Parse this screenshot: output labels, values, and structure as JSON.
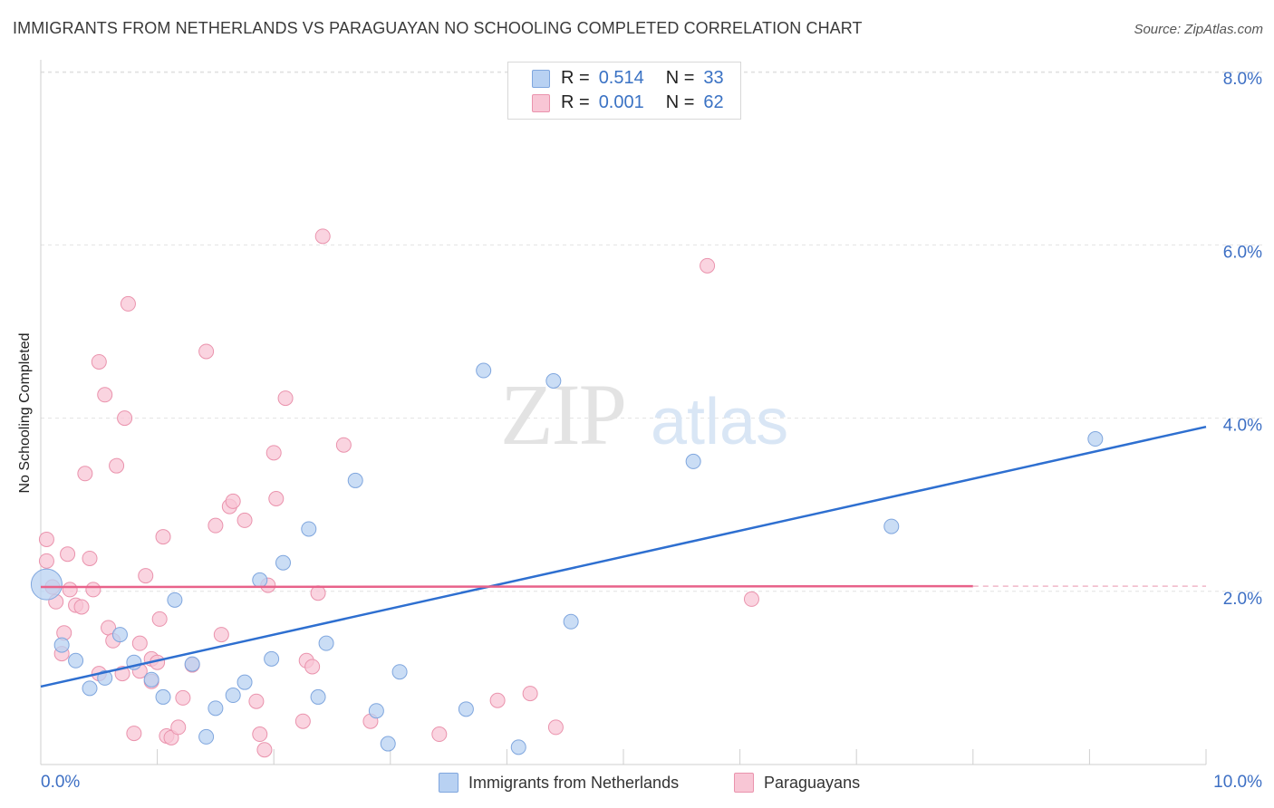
{
  "title": "IMMIGRANTS FROM NETHERLANDS VS PARAGUAYAN NO SCHOOLING COMPLETED CORRELATION CHART",
  "source": "Source: ZipAtlas.com",
  "watermark": {
    "zip": "ZIP",
    "atlas": "atlas"
  },
  "legend": {
    "r_label": "R =",
    "n_label": "N =",
    "series1": {
      "r": "0.514",
      "n": "33"
    },
    "series2": {
      "r": "0.001",
      "n": "62"
    }
  },
  "colors": {
    "blue_fill": "#b8d1f2",
    "blue_stroke": "#7fa6de",
    "blue_line": "#2e6fd0",
    "pink_fill": "#f8c6d5",
    "pink_stroke": "#ea93ad",
    "pink_line": "#e8628a",
    "axis_text": "#3d6fc4"
  },
  "chart_data": {
    "type": "scatter",
    "title": "IMMIGRANTS FROM NETHERLANDS VS PARAGUAYAN NO SCHOOLING COMPLETED CORRELATION CHART",
    "xlabel": "",
    "ylabel": "No Schooling Completed",
    "xlim": [
      0,
      10
    ],
    "ylim": [
      0,
      8.2
    ],
    "x_tick_labels": [
      "0.0%",
      "10.0%"
    ],
    "y_ticks": [
      2,
      4,
      6,
      8
    ],
    "y_tick_labels": [
      "2.0%",
      "4.0%",
      "6.0%",
      "8.0%"
    ],
    "series": [
      {
        "name": "Immigrants from Netherlands",
        "color": "#b8d1f2",
        "points": [
          [
            0.05,
            2.08
          ],
          [
            0.18,
            1.38
          ],
          [
            0.3,
            1.2
          ],
          [
            0.42,
            0.88
          ],
          [
            0.55,
            1.0
          ],
          [
            0.68,
            1.5
          ],
          [
            0.8,
            1.18
          ],
          [
            0.95,
            0.98
          ],
          [
            1.05,
            0.78
          ],
          [
            1.15,
            1.9
          ],
          [
            1.3,
            1.16
          ],
          [
            1.42,
            0.32
          ],
          [
            1.5,
            0.65
          ],
          [
            1.65,
            0.8
          ],
          [
            1.75,
            0.95
          ],
          [
            1.88,
            2.13
          ],
          [
            1.98,
            1.22
          ],
          [
            2.08,
            2.33
          ],
          [
            2.3,
            2.72
          ],
          [
            2.38,
            0.78
          ],
          [
            2.45,
            1.4
          ],
          [
            2.7,
            3.28
          ],
          [
            2.88,
            0.62
          ],
          [
            2.98,
            0.24
          ],
          [
            3.08,
            1.07
          ],
          [
            3.65,
            0.64
          ],
          [
            3.8,
            4.55
          ],
          [
            4.1,
            0.2
          ],
          [
            4.4,
            4.43
          ],
          [
            4.55,
            1.65
          ],
          [
            5.6,
            3.5
          ],
          [
            7.3,
            2.75
          ],
          [
            9.05,
            3.76
          ]
        ]
      },
      {
        "name": "Paraguayans",
        "color": "#f8c6d5",
        "points": [
          [
            0.05,
            2.6
          ],
          [
            0.05,
            2.35
          ],
          [
            0.1,
            2.05
          ],
          [
            0.13,
            1.88
          ],
          [
            0.18,
            1.28
          ],
          [
            0.2,
            1.52
          ],
          [
            0.23,
            2.43
          ],
          [
            0.25,
            2.02
          ],
          [
            0.3,
            1.84
          ],
          [
            0.35,
            1.82
          ],
          [
            0.38,
            3.36
          ],
          [
            0.42,
            2.38
          ],
          [
            0.45,
            2.02
          ],
          [
            0.5,
            1.05
          ],
          [
            0.5,
            4.65
          ],
          [
            0.55,
            4.27
          ],
          [
            0.58,
            1.58
          ],
          [
            0.62,
            1.43
          ],
          [
            0.65,
            3.45
          ],
          [
            0.7,
            1.05
          ],
          [
            0.72,
            4.0
          ],
          [
            0.75,
            5.32
          ],
          [
            0.8,
            0.36
          ],
          [
            0.85,
            1.08
          ],
          [
            0.85,
            1.4
          ],
          [
            0.9,
            2.18
          ],
          [
            0.95,
            1.22
          ],
          [
            0.95,
            0.96
          ],
          [
            1.0,
            1.18
          ],
          [
            1.02,
            1.68
          ],
          [
            1.05,
            2.63
          ],
          [
            1.08,
            0.33
          ],
          [
            1.12,
            0.31
          ],
          [
            1.18,
            0.43
          ],
          [
            1.22,
            0.77
          ],
          [
            1.3,
            1.15
          ],
          [
            1.42,
            4.77
          ],
          [
            1.5,
            2.76
          ],
          [
            1.55,
            1.5
          ],
          [
            1.62,
            2.98
          ],
          [
            1.65,
            3.04
          ],
          [
            1.75,
            2.82
          ],
          [
            1.85,
            0.73
          ],
          [
            1.88,
            0.35
          ],
          [
            1.92,
            0.17
          ],
          [
            1.95,
            2.07
          ],
          [
            2.0,
            3.6
          ],
          [
            2.02,
            3.07
          ],
          [
            2.1,
            4.23
          ],
          [
            2.25,
            0.5
          ],
          [
            2.28,
            1.2
          ],
          [
            2.33,
            1.13
          ],
          [
            2.38,
            1.98
          ],
          [
            2.42,
            6.1
          ],
          [
            2.6,
            3.69
          ],
          [
            2.83,
            0.5
          ],
          [
            3.42,
            0.35
          ],
          [
            3.92,
            0.74
          ],
          [
            4.2,
            0.82
          ],
          [
            4.42,
            0.43
          ],
          [
            5.72,
            5.76
          ],
          [
            6.1,
            1.91
          ]
        ]
      }
    ],
    "trendlines": [
      {
        "series": "Immigrants from Netherlands",
        "x": [
          0,
          10
        ],
        "y": [
          0.9,
          3.9
        ]
      },
      {
        "series": "Paraguayans",
        "x": [
          0,
          8.0
        ],
        "y": [
          2.05,
          2.06
        ],
        "dashed_extension_to": 10
      }
    ]
  },
  "bottom_legend": [
    "Immigrants from Netherlands",
    "Paraguayans"
  ]
}
